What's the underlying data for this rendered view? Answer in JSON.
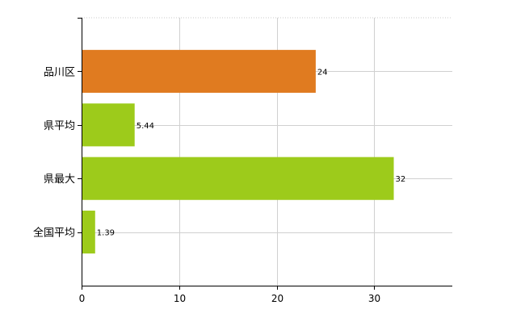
{
  "chart_data": {
    "type": "bar",
    "orientation": "horizontal",
    "categories": [
      "品川区",
      "県平均",
      "県最大",
      "全国平均"
    ],
    "values": [
      24,
      5.44,
      32,
      1.39
    ],
    "value_labels": [
      "24",
      "5.44",
      "32",
      "1.39"
    ],
    "bar_colors": [
      "#e07b20",
      "#9dcb1b",
      "#9dcb1b",
      "#9dcb1b"
    ],
    "xlim": [
      0,
      38
    ],
    "xticks": [
      0,
      10,
      20,
      30
    ],
    "xtick_labels": [
      "0",
      "10",
      "20",
      "30"
    ],
    "grid": true,
    "title": "",
    "xlabel": "",
    "ylabel": ""
  }
}
